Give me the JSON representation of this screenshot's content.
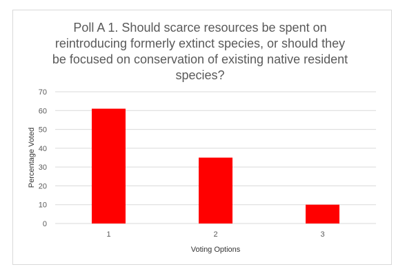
{
  "chart_data": {
    "type": "bar",
    "title_lines": [
      "Poll A 1. Should scarce resources be spent on",
      "reintroducing formerly extinct species, or should they",
      "be focused on conservation of existing native resident",
      "species?"
    ],
    "categories": [
      "1",
      "2",
      "3"
    ],
    "values": [
      61,
      35,
      10
    ],
    "xlabel": "Voting Options",
    "ylabel": "Percentage Voted",
    "ylim": [
      0,
      70
    ],
    "yticks": [
      0,
      10,
      20,
      30,
      40,
      50,
      60,
      70
    ],
    "grid": true,
    "legend": "none",
    "bar_color": "#ff0000",
    "grid_color": "#d9d9d9"
  }
}
